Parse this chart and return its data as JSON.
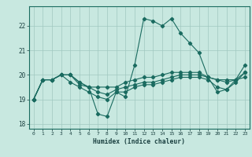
{
  "title": "",
  "xlabel": "Humidex (Indice chaleur)",
  "ylabel": "",
  "bg_color": "#c8e8e0",
  "grid_color": "#a0c8c0",
  "line_color": "#1a6b60",
  "x": [
    0,
    1,
    2,
    3,
    4,
    5,
    6,
    7,
    8,
    9,
    10,
    11,
    12,
    13,
    14,
    15,
    16,
    17,
    18,
    19,
    20,
    21,
    22,
    23
  ],
  "series1": [
    19.0,
    19.8,
    19.8,
    20.0,
    20.0,
    19.7,
    19.5,
    18.4,
    18.3,
    19.3,
    19.1,
    20.4,
    22.3,
    22.2,
    22.0,
    22.3,
    21.7,
    21.3,
    20.9,
    19.9,
    19.3,
    19.4,
    19.8,
    20.4
  ],
  "series2": [
    19.0,
    19.8,
    19.8,
    20.0,
    20.0,
    19.7,
    19.5,
    19.5,
    19.5,
    19.5,
    19.7,
    19.8,
    19.9,
    19.9,
    20.0,
    20.1,
    20.1,
    20.1,
    20.1,
    19.9,
    19.8,
    19.8,
    19.8,
    19.9
  ],
  "series3": [
    19.0,
    19.8,
    19.8,
    20.0,
    20.0,
    19.6,
    19.5,
    19.3,
    19.2,
    19.4,
    19.5,
    19.6,
    19.7,
    19.7,
    19.8,
    19.9,
    20.0,
    20.0,
    20.0,
    19.9,
    19.8,
    19.7,
    19.8,
    20.1
  ],
  "series4": [
    19.0,
    19.8,
    19.8,
    20.0,
    19.7,
    19.5,
    19.3,
    19.1,
    19.0,
    19.3,
    19.3,
    19.5,
    19.6,
    19.6,
    19.7,
    19.8,
    19.9,
    19.9,
    19.9,
    19.8,
    19.5,
    19.4,
    19.7,
    20.1
  ],
  "ylim": [
    17.8,
    22.8
  ],
  "yticks": [
    18,
    19,
    20,
    21,
    22
  ],
  "xlim": [
    -0.5,
    23.5
  ]
}
